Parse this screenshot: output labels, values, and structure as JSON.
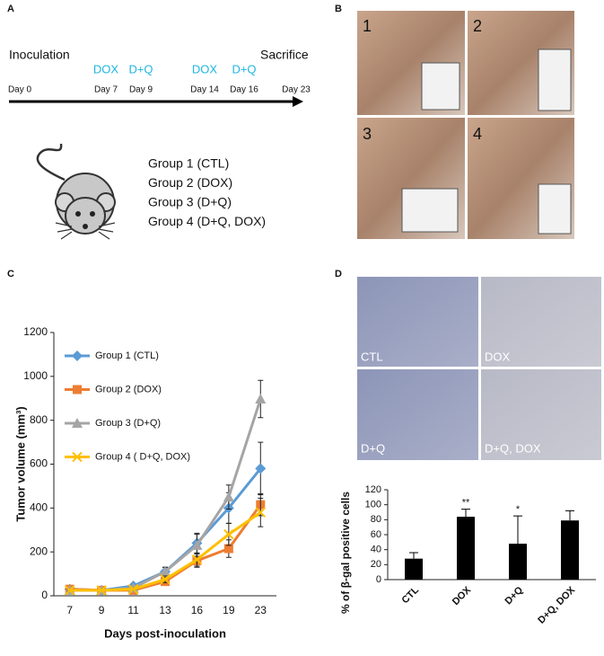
{
  "panel_labels": [
    "A",
    "B",
    "C",
    "D"
  ],
  "timeline": {
    "start_label": "Inoculation",
    "end_label": "Sacrifice",
    "events": [
      {
        "day": "Day 0"
      },
      {
        "day": "Day 7",
        "treatment": "DOX"
      },
      {
        "day": "Day 9",
        "treatment": "D+Q"
      },
      {
        "day": "Day 14",
        "treatment": "DOX"
      },
      {
        "day": "Day 16",
        "treatment": "D+Q"
      },
      {
        "day": "Day 23"
      }
    ]
  },
  "groups": [
    "Group 1 (CTL)",
    "Group 2 (DOX)",
    "Group 3 (D+Q)",
    "Group 4 (D+Q, DOX)"
  ],
  "photos": [
    "1",
    "2",
    "3",
    "4"
  ],
  "micrographs": [
    "CTL",
    "DOX",
    "D+Q",
    "D+Q, DOX"
  ],
  "chart_data": [
    {
      "type": "line",
      "x_label": "Days post-inoculation",
      "y_label": "Tumor volume (mm³)",
      "categories": [
        "7",
        "9",
        "11",
        "13",
        "16",
        "19",
        "23"
      ],
      "ylim": [
        0,
        1200
      ],
      "yticks": [
        0,
        200,
        400,
        600,
        800,
        1000,
        1200
      ],
      "legend": "upper left",
      "series": [
        {
          "name": "Group 1 (CTL)",
          "color": "#5b9bd5",
          "marker": "diamond",
          "values": [
            30,
            25,
            45,
            110,
            240,
            400,
            580
          ],
          "errors": [
            5,
            5,
            8,
            20,
            45,
            70,
            120
          ]
        },
        {
          "name": "Group 2 (DOX)",
          "color": "#ed7d31",
          "marker": "square",
          "values": [
            30,
            25,
            25,
            65,
            160,
            215,
            415
          ],
          "errors": [
            5,
            5,
            6,
            15,
            30,
            40,
            50
          ]
        },
        {
          "name": "Group 3 (D+Q)",
          "color": "#a5a5a5",
          "marker": "triangle",
          "values": [
            25,
            25,
            35,
            110,
            230,
            450,
            897
          ],
          "errors": [
            5,
            5,
            8,
            20,
            50,
            55,
            85
          ]
        },
        {
          "name": "Group 4 ( D+Q, DOX)",
          "color": "#ffc000",
          "marker": "x",
          "values": [
            25,
            25,
            30,
            75,
            165,
            280,
            380
          ],
          "errors": [
            5,
            5,
            6,
            15,
            30,
            50,
            65
          ]
        }
      ]
    },
    {
      "type": "bar",
      "y_label": "% of β-gal positive cells",
      "categories": [
        "CTL",
        "DOX",
        "D+Q",
        "D+Q, DOX"
      ],
      "values": [
        28,
        84,
        48,
        79
      ],
      "errors": [
        8,
        10,
        37,
        13
      ],
      "value_annotations": [
        null,
        "**",
        "*",
        null
      ],
      "color": "#000000",
      "ylim": [
        0,
        120
      ],
      "yticks": [
        0,
        20,
        40,
        60,
        80,
        100,
        120
      ]
    }
  ]
}
